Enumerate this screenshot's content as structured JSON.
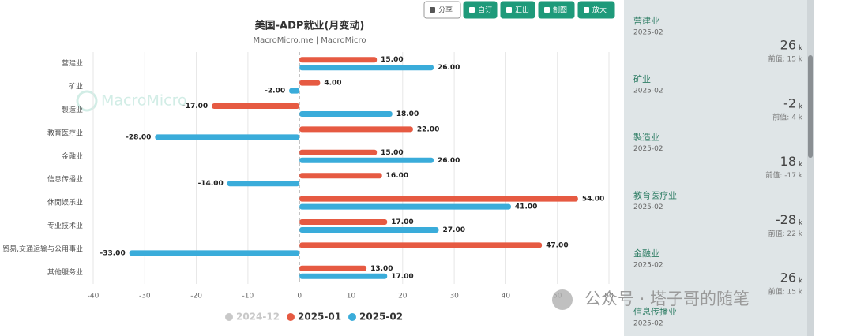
{
  "chart_data": {
    "type": "bar",
    "orientation": "horizontal",
    "title": "美国-ADP就业(月变动)",
    "subtitle": "MacroMicro.me | MacroMicro",
    "categories": [
      "营建业",
      "矿业",
      "製造业",
      "教育医疗业",
      "金融业",
      "信息传播业",
      "休閒娱乐业",
      "专业技术业",
      "贸易,交通运输与公用事业",
      "其他服务业"
    ],
    "series": [
      {
        "name": "2024-12",
        "color": "#c8c8c8",
        "visible": false,
        "values": [
          null,
          null,
          null,
          null,
          null,
          null,
          null,
          null,
          null,
          null
        ]
      },
      {
        "name": "2025-01",
        "color": "#e65a42",
        "values": [
          15,
          4,
          -17,
          22,
          15,
          16,
          54,
          17,
          47,
          13
        ],
        "value_labels": [
          "15.00",
          "4.00",
          "-17.00",
          "22.00",
          "15.00",
          "16.00",
          "54.00",
          "17.00",
          "47.00",
          "13.00"
        ]
      },
      {
        "name": "2025-02",
        "color": "#3aacda",
        "values": [
          26,
          -2,
          18,
          -28,
          26,
          -14,
          41,
          27,
          -33,
          17
        ],
        "value_labels": [
          "26.00",
          "-2.00",
          "18.00",
          "-28.00",
          "26.00",
          "-14.00",
          "41.00",
          "27.00",
          "-33.00",
          "17.00"
        ]
      }
    ],
    "xlim": [
      -40,
      60
    ],
    "xticks": [
      -40,
      -30,
      -20,
      -10,
      0,
      10,
      20,
      30,
      40,
      50,
      60
    ],
    "grid": true,
    "legend": "bottom"
  },
  "toolbar": [
    "分享",
    "自订",
    "汇出",
    "制图",
    "放大"
  ],
  "watermarks": [
    "MacroMicro",
    "公众号 · 塔子哥的随笔"
  ],
  "panel": [
    {
      "name": "营建业",
      "date": "2025-02",
      "value": 26,
      "unit": "k",
      "previous": "前值: 15 k"
    },
    {
      "name": "矿业",
      "date": "2025-02",
      "value": -2,
      "unit": "k",
      "previous": "前值: 4 k"
    },
    {
      "name": "製造业",
      "date": "2025-02",
      "value": 18,
      "unit": "k",
      "previous": "前值: -17 k"
    },
    {
      "name": "教育医疗业",
      "date": "2025-02",
      "value": -28,
      "unit": "k",
      "previous": "前值: 22 k"
    },
    {
      "name": "金融业",
      "date": "2025-02",
      "value": 26,
      "unit": "k",
      "previous": "前值: 15 k"
    },
    {
      "name": "信息传播业",
      "date": "2025-02"
    }
  ]
}
